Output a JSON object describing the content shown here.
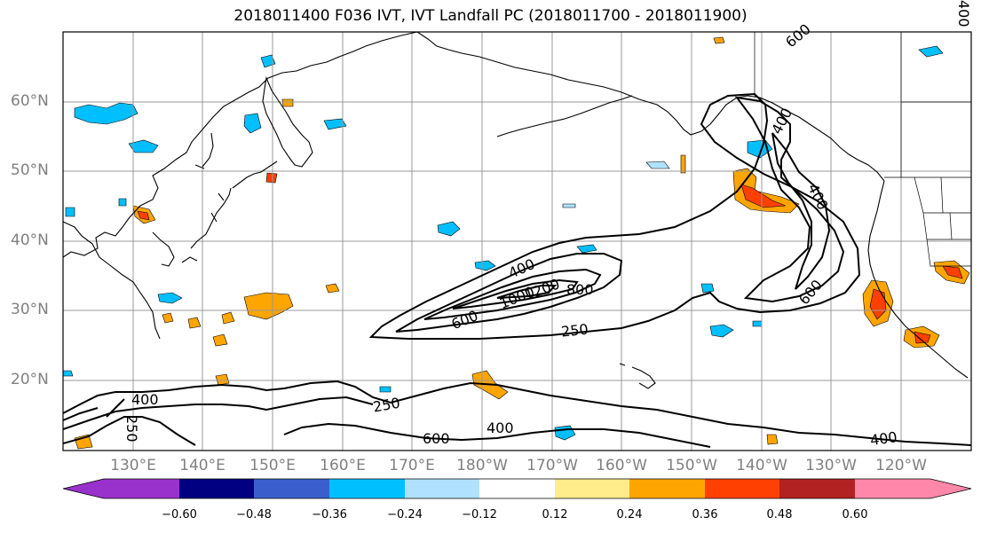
{
  "title": "2018011400 F036 IVT, IVT Landfall PC (2018011700 - 2018011900)",
  "lat_labels": [
    "60°N",
    "50°N",
    "40°N",
    "30°N",
    "20°N"
  ],
  "lon_labels": [
    "130°E",
    "140°E",
    "150°E",
    "160°E",
    "170°E",
    "180°W",
    "170°W",
    "160°W",
    "150°W",
    "140°W",
    "130°W",
    "120°W"
  ],
  "contour_labels": [
    "400",
    "600",
    "1000",
    "1200",
    "800",
    "250",
    "400",
    "600",
    "400",
    "250",
    "400",
    "600",
    "400",
    "400",
    "250",
    "600",
    "400"
  ],
  "colorbar": {
    "ticks": [
      "−0.60",
      "−0.48",
      "−0.36",
      "−0.24",
      "−0.12",
      "0.12",
      "0.24",
      "0.36",
      "0.48",
      "0.60"
    ],
    "colors": [
      "#9932cc",
      "#000080",
      "#3a5fcd",
      "#00bfff",
      "#b0e2ff",
      "#ffffff",
      "#ffec8b",
      "#ffa500",
      "#ff4000",
      "#b22222",
      "#ff88aa"
    ]
  }
}
